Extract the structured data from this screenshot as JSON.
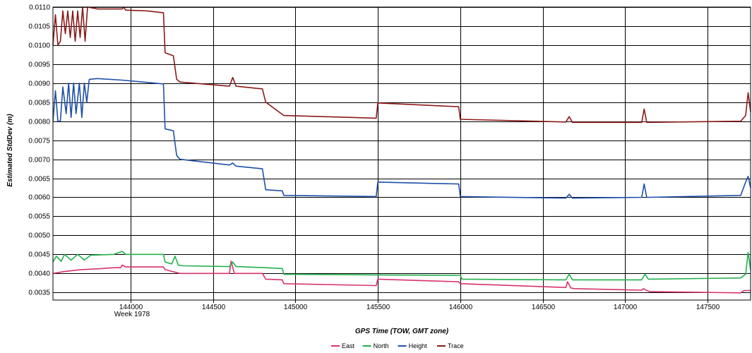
{
  "chart_data": {
    "type": "line",
    "xlabel": "GPS Time (TOW, GMT zone)",
    "ylabel": "Estimated StdDev (m)",
    "week_label": "Week 1978",
    "xlim": [
      143530,
      147760
    ],
    "ylim": [
      0.0033,
      0.011
    ],
    "x_ticks": [
      144000,
      144500,
      145000,
      145500,
      146000,
      146500,
      147000,
      147500
    ],
    "x_tick_labels": [
      "144000",
      "144500",
      "145000",
      "145500",
      "146000",
      "146500",
      "147000",
      "147500"
    ],
    "y_ticks": [
      0.0035,
      0.004,
      0.0045,
      0.005,
      0.0055,
      0.006,
      0.0065,
      0.007,
      0.0075,
      0.008,
      0.0085,
      0.009,
      0.0095,
      0.01,
      0.0105,
      0.011
    ],
    "y_tick_labels": [
      "0.0035",
      "0.0040",
      "0.0045",
      "0.0050",
      "0.0055",
      "0.0060",
      "0.0065",
      "0.0070",
      "0.0075",
      "0.0080",
      "0.0085",
      "0.0090",
      "0.0095",
      "0.0100",
      "0.0105",
      "0.0110"
    ],
    "grid": true,
    "legend_position": "bottom-center",
    "series": [
      {
        "name": "East",
        "color": "#d6336c",
        "x": [
          143530,
          143600,
          143700,
          143800,
          143900,
          143940,
          143950,
          143970,
          144200,
          144210,
          144300,
          144600,
          144610,
          144630,
          144650,
          144800,
          144820,
          144920,
          144930,
          145490,
          145500,
          145990,
          146000,
          146640,
          146650,
          146670,
          146690,
          147100,
          147110,
          147130,
          147150,
          147700,
          147720,
          147760
        ],
        "y": [
          0.004,
          0.00405,
          0.0041,
          0.00412,
          0.00415,
          0.00415,
          0.00422,
          0.00417,
          0.00417,
          0.0041,
          0.004,
          0.004,
          0.00432,
          0.004,
          0.004,
          0.004,
          0.00385,
          0.00383,
          0.00373,
          0.00368,
          0.00385,
          0.00378,
          0.00373,
          0.00363,
          0.00378,
          0.00362,
          0.0036,
          0.00356,
          0.0036,
          0.00355,
          0.00352,
          0.00349,
          0.00355,
          0.00355
        ]
      },
      {
        "name": "North",
        "color": "#22b14c",
        "x": [
          143530,
          143550,
          143580,
          143600,
          143640,
          143680,
          143720,
          143760,
          143900,
          143950,
          143970,
          144200,
          144210,
          144250,
          144270,
          144290,
          144320,
          144600,
          144620,
          144640,
          144820,
          144920,
          144930,
          145500,
          146000,
          146010,
          146640,
          146660,
          146680,
          147100,
          147120,
          147140,
          147700,
          147730,
          147745,
          147760
        ],
        "y": [
          0.0043,
          0.00445,
          0.00432,
          0.0045,
          0.00435,
          0.0045,
          0.00435,
          0.00448,
          0.0045,
          0.00458,
          0.0045,
          0.0045,
          0.0043,
          0.00425,
          0.00445,
          0.00422,
          0.0042,
          0.00418,
          0.0043,
          0.00418,
          0.00415,
          0.00413,
          0.00398,
          0.00396,
          0.00395,
          0.00385,
          0.00383,
          0.00398,
          0.00383,
          0.00383,
          0.00398,
          0.00385,
          0.00388,
          0.00398,
          0.00455,
          0.0041
        ]
      },
      {
        "name": "Height",
        "color": "#1f4fa8",
        "x": [
          143530,
          143545,
          143560,
          143575,
          143590,
          143610,
          143625,
          143640,
          143655,
          143670,
          143690,
          143705,
          143720,
          143735,
          143750,
          143800,
          143950,
          144100,
          144200,
          144210,
          144260,
          144280,
          144300,
          144600,
          144620,
          144640,
          144800,
          144820,
          144920,
          144930,
          145490,
          145500,
          145990,
          146000,
          146640,
          146660,
          146680,
          147100,
          147115,
          147130,
          147140,
          147700,
          147730,
          147745,
          147760
        ],
        "y": [
          0.008,
          0.0088,
          0.008,
          0.008,
          0.0089,
          0.0082,
          0.009,
          0.0081,
          0.009,
          0.0082,
          0.009,
          0.0081,
          0.009,
          0.0085,
          0.0091,
          0.00912,
          0.00908,
          0.00902,
          0.00898,
          0.0078,
          0.00775,
          0.0071,
          0.007,
          0.00685,
          0.0069,
          0.00682,
          0.00675,
          0.0062,
          0.00617,
          0.00605,
          0.00602,
          0.0064,
          0.00635,
          0.00602,
          0.00598,
          0.00608,
          0.00598,
          0.006,
          0.00635,
          0.006,
          0.006,
          0.00605,
          0.0064,
          0.00655,
          0.00625
        ]
      },
      {
        "name": "Trace",
        "color": "#8b1a1a",
        "x": [
          143530,
          143545,
          143560,
          143575,
          143590,
          143605,
          143620,
          143635,
          143650,
          143665,
          143680,
          143695,
          143710,
          143725,
          143740,
          143800,
          143950,
          143960,
          143970,
          144100,
          144200,
          144210,
          144260,
          144280,
          144300,
          144600,
          144620,
          144640,
          144800,
          144820,
          144920,
          144930,
          145490,
          145500,
          145990,
          146000,
          146640,
          146660,
          146680,
          147100,
          147115,
          147130,
          147140,
          147700,
          147730,
          147745,
          147760
        ],
        "y": [
          0.01,
          0.0108,
          0.01,
          0.0101,
          0.0109,
          0.0103,
          0.0109,
          0.0102,
          0.0109,
          0.0101,
          0.0109,
          0.0102,
          0.011,
          0.0101,
          0.011,
          0.01095,
          0.01095,
          0.011,
          0.01092,
          0.0109,
          0.01085,
          0.0098,
          0.00972,
          0.0091,
          0.00903,
          0.00892,
          0.00915,
          0.00892,
          0.00885,
          0.0085,
          0.00818,
          0.00815,
          0.00808,
          0.00848,
          0.00838,
          0.00805,
          0.00798,
          0.00812,
          0.00797,
          0.00797,
          0.00832,
          0.00797,
          0.00797,
          0.008,
          0.00815,
          0.00875,
          0.00825
        ]
      }
    ]
  }
}
